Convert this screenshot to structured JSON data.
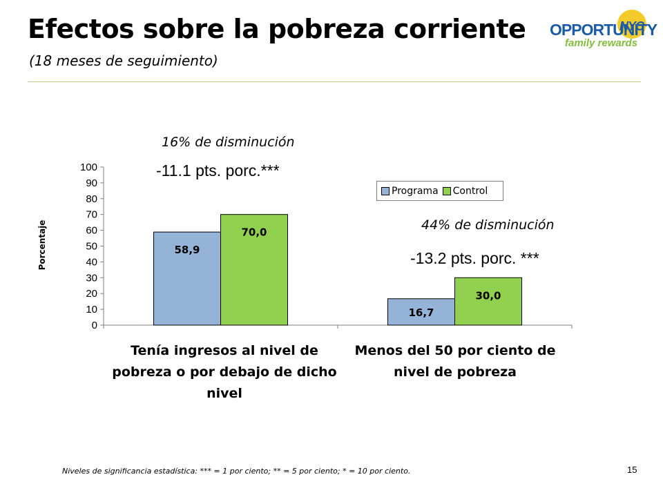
{
  "slide": {
    "title": "Efectos sobre la pobreza corriente",
    "subtitle": "(18 meses de seguimiento)",
    "footnote": "Niveles de significancia estadística:  *** = 1 por ciento; ** = 5 por ciento; * = 10 por ciento.",
    "page_number": "15"
  },
  "logo": {
    "word": "OPPORTUNITY",
    "badge": "NYC",
    "tagline": "family rewards",
    "colors": {
      "blue": "#1b5aa6",
      "yellow": "#f3cc2c",
      "green": "#84bd3c"
    }
  },
  "annotations": {
    "group1_pct": "16% de disminución",
    "group1_pts": "-11.1 pts. porc.***",
    "group2_pct": "44% de disminución",
    "group2_pts": "-13.2 pts. porc. ***"
  },
  "chart_data": {
    "type": "bar",
    "categories": [
      "Tenía ingresos al nivel de pobreza o por debajo de dicho nivel",
      "Menos del 50 por ciento de nivel de pobreza"
    ],
    "series": [
      {
        "name": "Programa",
        "values": [
          58.9,
          16.7
        ],
        "labels": [
          "58,9",
          "16,7"
        ],
        "color": "#95b3d7"
      },
      {
        "name": "Control",
        "values": [
          70.0,
          30.0
        ],
        "labels": [
          "70,0",
          "30,0"
        ],
        "color": "#92d050"
      }
    ],
    "ylabel": "Porcentaje",
    "ylim": [
      0,
      100
    ],
    "yticks": [
      0,
      10,
      20,
      30,
      40,
      50,
      60,
      70,
      80,
      90,
      100
    ],
    "grid": false,
    "legend_position": "top-right"
  }
}
